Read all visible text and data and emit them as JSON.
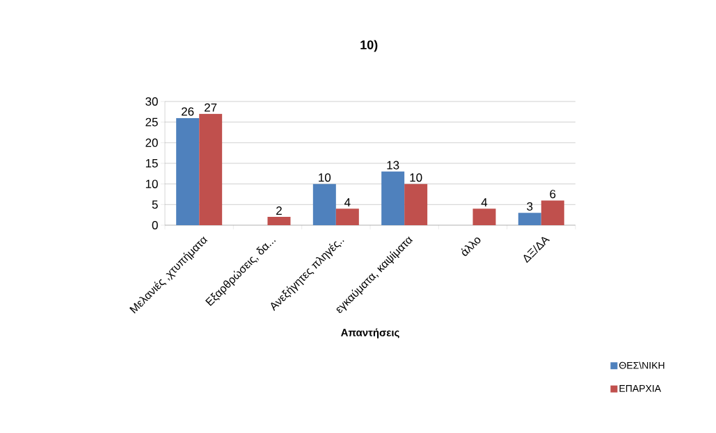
{
  "chart_data": {
    "type": "bar",
    "title": "10)",
    "xlabel": "Απαντήσεις",
    "categories": [
      "Μελανιές ,χτυπήματα",
      "Εξαρθρώσεις, δα...",
      "Ανεξήγητες πληγές..",
      "εγκαύματα, καψίματα",
      "άλλο",
      "ΔΞ/ΔΑ"
    ],
    "series": [
      {
        "name": "ΘΕΣ\\ΝΙΚΗ",
        "color": "#4f81bd",
        "values": [
          26,
          null,
          10,
          13,
          null,
          3
        ]
      },
      {
        "name": "ΕΠΑΡΧΙΑ",
        "color": "#c0504d",
        "values": [
          27,
          2,
          4,
          10,
          4,
          6
        ]
      }
    ],
    "ylim": [
      0,
      30
    ],
    "yticks": [
      0,
      5,
      10,
      15,
      20,
      25,
      30
    ],
    "grid": "y",
    "legend": "bottom right",
    "data_labels": true
  }
}
